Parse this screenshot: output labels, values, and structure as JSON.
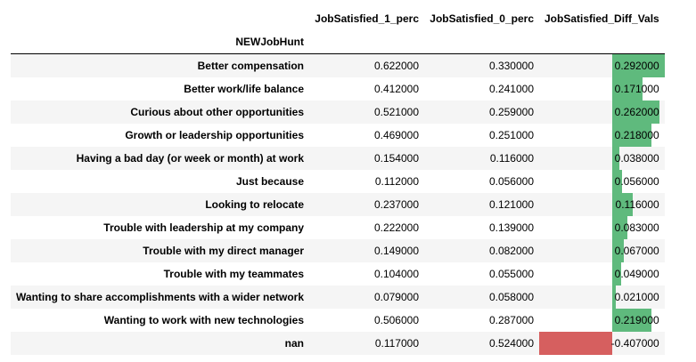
{
  "table": {
    "columns": [
      "JobSatisfied_1_perc",
      "JobSatisfied_0_perc",
      "JobSatisfied_Diff_Vals"
    ],
    "index_name": "NEWJobHunt",
    "colors": {
      "positive": "#5fba7d",
      "negative": "#d65f5f"
    },
    "bar_range": [
      -0.407,
      0.292
    ],
    "rows": [
      {
        "label": "Better compensation",
        "c1": "0.622000",
        "c0": "0.330000",
        "diff": "0.292000",
        "diff_value": 0.292
      },
      {
        "label": "Better work/life balance",
        "c1": "0.412000",
        "c0": "0.241000",
        "diff": "0.171000",
        "diff_value": 0.171
      },
      {
        "label": "Curious about other opportunities",
        "c1": "0.521000",
        "c0": "0.259000",
        "diff": "0.262000",
        "diff_value": 0.262
      },
      {
        "label": "Growth or leadership opportunities",
        "c1": "0.469000",
        "c0": "0.251000",
        "diff": "0.218000",
        "diff_value": 0.218
      },
      {
        "label": "Having a bad day (or week or month) at work",
        "c1": "0.154000",
        "c0": "0.116000",
        "diff": "0.038000",
        "diff_value": 0.038
      },
      {
        "label": "Just because",
        "c1": "0.112000",
        "c0": "0.056000",
        "diff": "0.056000",
        "diff_value": 0.056
      },
      {
        "label": "Looking to relocate",
        "c1": "0.237000",
        "c0": "0.121000",
        "diff": "0.116000",
        "diff_value": 0.116
      },
      {
        "label": "Trouble with leadership at my company",
        "c1": "0.222000",
        "c0": "0.139000",
        "diff": "0.083000",
        "diff_value": 0.083
      },
      {
        "label": "Trouble with my direct manager",
        "c1": "0.149000",
        "c0": "0.082000",
        "diff": "0.067000",
        "diff_value": 0.067
      },
      {
        "label": "Trouble with my teammates",
        "c1": "0.104000",
        "c0": "0.055000",
        "diff": "0.049000",
        "diff_value": 0.049
      },
      {
        "label": "Wanting to share accomplishments with a wider network",
        "c1": "0.079000",
        "c0": "0.058000",
        "diff": "0.021000",
        "diff_value": 0.021
      },
      {
        "label": "Wanting to work with new technologies",
        "c1": "0.506000",
        "c0": "0.287000",
        "diff": "0.219000",
        "diff_value": 0.219
      },
      {
        "label": "nan",
        "c1": "0.117000",
        "c0": "0.524000",
        "diff": "-0.407000",
        "diff_value": -0.407
      }
    ]
  }
}
